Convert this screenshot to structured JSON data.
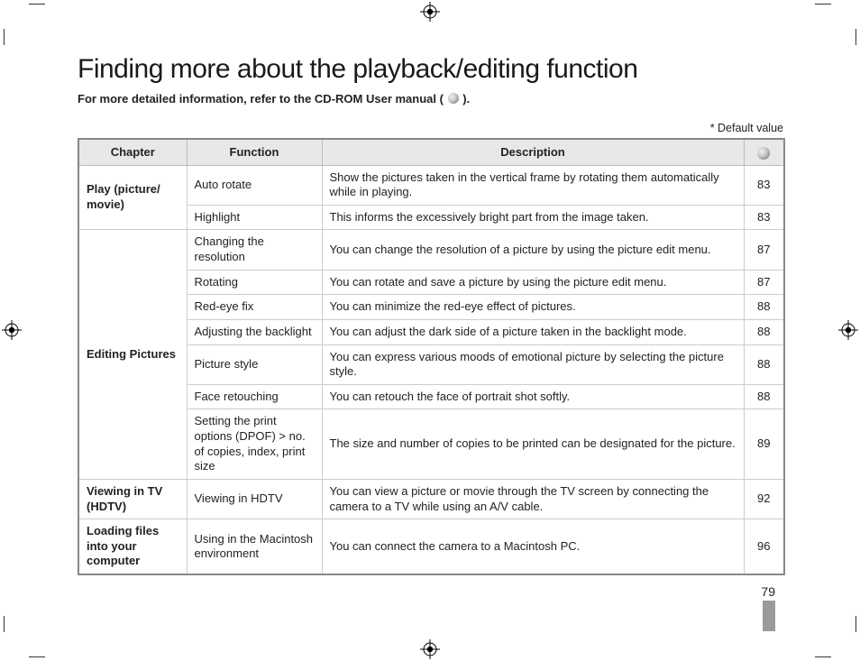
{
  "title": "Finding more about the playback/editing function",
  "subtitle_prefix": "For more detailed information, refer to the CD-ROM User manual (",
  "subtitle_suffix": ").",
  "default_note": "* Default value",
  "page_number": "79",
  "columns": {
    "chapter": "Chapter",
    "function": "Function",
    "description": "Description",
    "page_icon_alt": "disc"
  },
  "chapters": [
    {
      "name": "Play (picture/ movie)",
      "rows": [
        {
          "function": "Auto rotate",
          "description": "Show the pictures taken in the vertical frame by rotating them automatically while in playing.",
          "page": "83"
        },
        {
          "function": "Highlight",
          "description": "This informs the excessively bright part from the image taken.",
          "page": "83"
        }
      ]
    },
    {
      "name": "Editing Pictures",
      "rows": [
        {
          "function": "Changing the resolution",
          "description": "You can change the resolution of a picture by using the picture edit menu.",
          "page": "87"
        },
        {
          "function": "Rotating",
          "description": "You can rotate and save a picture by using the picture edit menu.",
          "page": "87"
        },
        {
          "function": "Red-eye fix",
          "description": "You can minimize the red-eye effect of pictures.",
          "page": "88"
        },
        {
          "function": "Adjusting the backlight",
          "description": "You can adjust the dark side of a picture taken in the backlight mode.",
          "page": "88"
        },
        {
          "function": "Picture style",
          "description": "You can express various moods of emotional picture by selecting the picture style.",
          "page": "88"
        },
        {
          "function": "Face retouching",
          "description": "You can retouch the face of portrait shot softly.",
          "page": "88"
        },
        {
          "function": "Setting the print options (DPOF) > no. of copies, index, print size",
          "description": "The size and number of copies to be printed can be designated for the picture.",
          "page": "89"
        }
      ]
    },
    {
      "name": "Viewing in TV (HDTV)",
      "rows": [
        {
          "function": "Viewing in HDTV",
          "description": "You can view a picture or movie through the TV screen by connecting the camera to a TV while using an A/V cable.",
          "page": "92"
        }
      ]
    },
    {
      "name": "Loading files into your computer",
      "rows": [
        {
          "function": "Using in the Macintosh environment",
          "description": "You can connect the camera to a Macintosh PC.",
          "page": "96"
        }
      ]
    }
  ],
  "colors": {
    "header_bg": "#e8e8e8",
    "border_outer": "#888888",
    "border_inner": "#cccccc",
    "text": "#222222",
    "thumb_tab": "#9a9a9a",
    "background": "#ffffff"
  },
  "font_sizes_pt": {
    "title": 22,
    "subtitle": 10,
    "table": 10,
    "page_number": 11
  }
}
